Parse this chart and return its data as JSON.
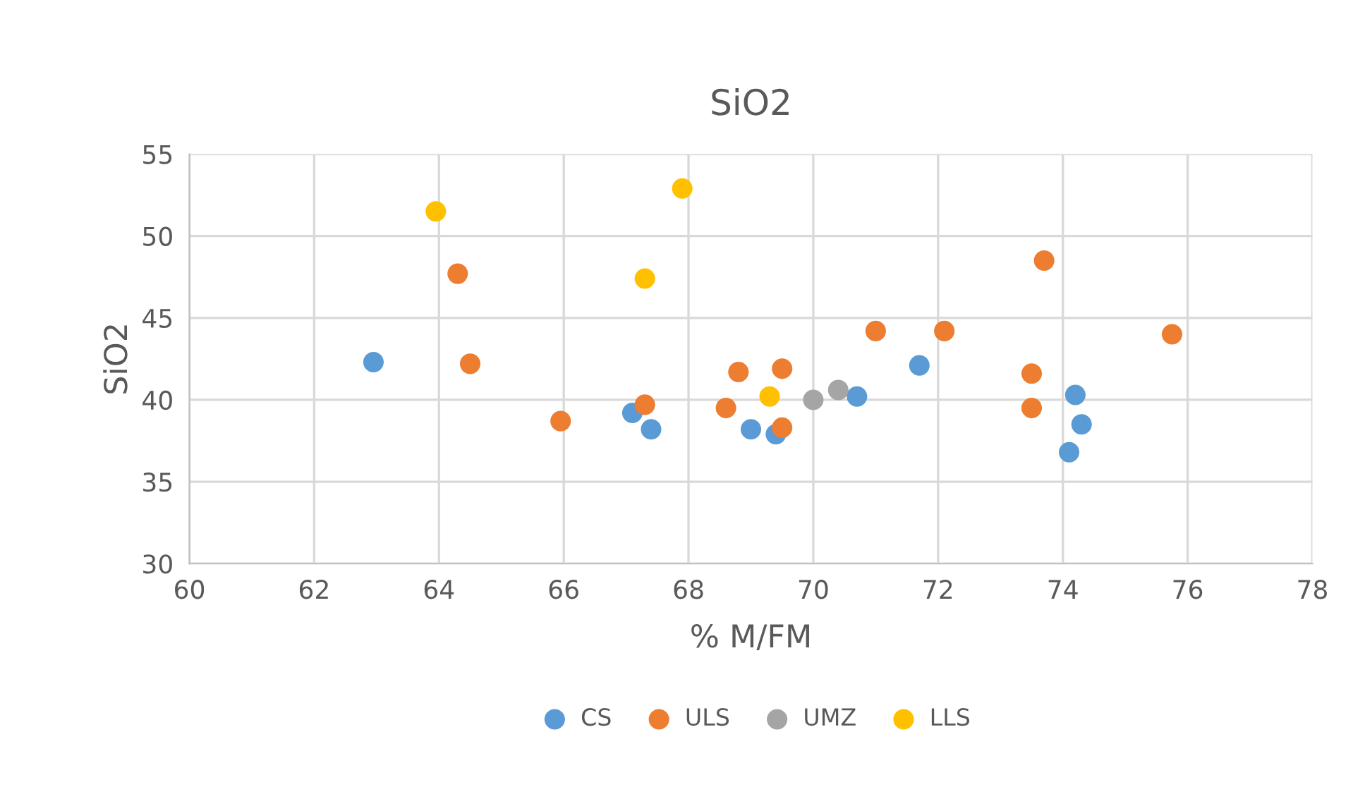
{
  "chart_data": {
    "type": "scatter",
    "title": "SiO2",
    "xlabel": "% M/FM",
    "ylabel": "SiO2",
    "xlim": [
      60,
      78
    ],
    "xticks": [
      60,
      62,
      64,
      66,
      68,
      70,
      72,
      74,
      76,
      78
    ],
    "ylim": [
      30,
      55
    ],
    "yticks": [
      30,
      35,
      40,
      45,
      50,
      55
    ],
    "grid": true,
    "legend": "bottom",
    "marker": "circle",
    "series": [
      {
        "name": "CS",
        "color": "#5b9bd5",
        "x": [
          62.95,
          67.1,
          67.4,
          69.0,
          69.4,
          70.7,
          71.7,
          74.2,
          74.3,
          74.1
        ],
        "values": [
          42.3,
          39.2,
          38.2,
          38.2,
          37.9,
          40.2,
          42.1,
          40.3,
          38.5,
          36.8
        ]
      },
      {
        "name": "ULS",
        "color": "#ed7d31",
        "x": [
          64.3,
          64.5,
          65.95,
          67.3,
          68.8,
          68.6,
          69.5,
          69.5,
          71.0,
          72.1,
          73.7,
          73.5,
          73.5,
          75.75
        ],
        "values": [
          47.7,
          42.2,
          38.7,
          39.7,
          41.7,
          39.5,
          41.9,
          38.3,
          44.2,
          44.2,
          48.5,
          41.6,
          39.5,
          44.0
        ]
      },
      {
        "name": "UMZ",
        "color": "#a5a5a5",
        "x": [
          70.0,
          70.4
        ],
        "values": [
          40.0,
          40.6
        ]
      },
      {
        "name": "LLS",
        "color": "#ffc000",
        "x": [
          63.95,
          67.9,
          67.3,
          69.3
        ],
        "values": [
          51.5,
          52.9,
          47.4,
          40.2
        ]
      }
    ]
  }
}
